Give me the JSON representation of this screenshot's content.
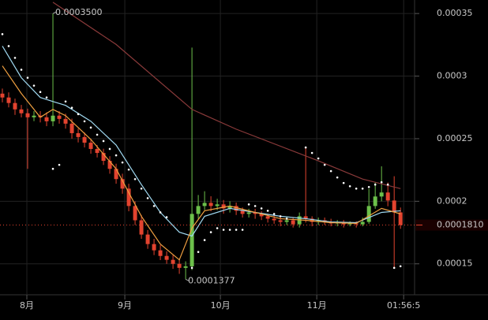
{
  "chart_data": {
    "type": "candlestick",
    "xlim": [
      0,
      65.6
    ],
    "ylim": [
      0.0001278,
      0.0003608
    ],
    "yticks": [
      0.00015,
      0.0002,
      0.00025,
      0.0003,
      0.00035
    ],
    "xticks": [
      {
        "value": 3.875,
        "label": "8月"
      },
      {
        "value": 19.375,
        "label": "9月"
      },
      {
        "value": 34.5,
        "label": "10月"
      },
      {
        "value": 49.75,
        "label": "11月"
      },
      {
        "value": 63.5,
        "label": "01:56:5"
      }
    ],
    "grid": true,
    "up_color": "#6cc04a",
    "down_color": "#e2432f",
    "candles": {
      "open": [
        0.000286,
        0.0002829,
        0.0002785,
        0.0002734,
        0.0002703,
        0.0002671,
        0.0002684,
        0.0002671,
        0.0002639,
        0.0002684,
        0.0002658,
        0.000262,
        0.0002544,
        0.0002513,
        0.0002468,
        0.0002418,
        0.0002386,
        0.0002323,
        0.0002259,
        0.0002177,
        0.0002101,
        0.0001962,
        0.0001848,
        0.0001734,
        0.0001658,
        0.0001608,
        0.0001563,
        0.0001532,
        0.00015,
        0.0001468,
        0.000148,
        0.0001899,
        0.0001962,
        0.0001987,
        0.0001962,
        0.0001975,
        0.0001943,
        0.0001962,
        0.0001924,
        0.0001899,
        0.0001911,
        0.0001899,
        0.000188,
        0.0001861,
        0.0001848,
        0.0001835,
        0.0001848,
        0.0001816,
        0.000188,
        0.0001861,
        0.0001835,
        0.0001848,
        0.0001835,
        0.0001823,
        0.0001829,
        0.0001816,
        0.0001823,
        0.0001816,
        0.0001835,
        0.0001962,
        0.0002038,
        0.000207,
        0.0002006,
        0.0001911
      ],
      "high": [
        0.00029,
        0.000287,
        0.000282,
        0.000277,
        0.000274,
        0.000272,
        0.000272,
        0.000271,
        0.00035,
        0.000272,
        0.00027,
        0.000266,
        0.000258,
        0.000255,
        0.00025,
        0.000245,
        0.000242,
        0.000236,
        0.00023,
        0.000222,
        0.000214,
        0.0002,
        0.000189,
        0.000177,
        0.00017,
        0.000165,
        0.00016,
        0.000157,
        0.000154,
        0.000152,
        0.0003228,
        0.000205,
        0.000208,
        0.000204,
        0.000202,
        0.000201,
        0.0002,
        0.000199,
        0.000195,
        0.000194,
        0.000194,
        0.000192,
        0.00019,
        0.000189,
        0.000188,
        0.000188,
        0.000187,
        0.000191,
        0.000243,
        0.000188,
        0.000187,
        0.000187,
        0.000186,
        0.000185,
        0.000185,
        0.000184,
        0.000184,
        0.000187,
        0.00021,
        0.000215,
        0.0002279,
        0.000215,
        0.00022,
        0.000195
      ],
      "low": [
        0.000279,
        0.000275,
        0.000269,
        0.000267,
        0.0002259,
        0.000264,
        0.000263,
        0.00026,
        0.00026,
        0.000262,
        0.000258,
        0.00025,
        0.000247,
        0.000243,
        0.000238,
        0.000235,
        0.000229,
        0.000222,
        0.000214,
        0.000206,
        0.000192,
        0.000181,
        0.00017,
        0.000162,
        0.000157,
        0.000153,
        0.00015,
        0.000146,
        0.000142,
        0.0001377,
        0.000145,
        0.000186,
        0.000193,
        0.000192,
        0.000193,
        0.00019,
        0.000191,
        0.000189,
        0.000187,
        0.000187,
        0.000186,
        0.000185,
        0.000183,
        0.000182,
        0.00018,
        0.000181,
        0.000179,
        0.000179,
        0.000183,
        0.00018,
        0.000181,
        0.000181,
        0.00018,
        0.00018,
        0.000179,
        0.00018,
        0.000179,
        0.00018,
        0.000182,
        0.000194,
        0.0002,
        0.000196,
        0.0001468,
        0.000178
      ],
      "close": [
        0.0002829,
        0.0002785,
        0.0002734,
        0.0002703,
        0.0002671,
        0.0002684,
        0.0002671,
        0.0002639,
        0.0002684,
        0.0002658,
        0.000262,
        0.0002544,
        0.0002513,
        0.0002468,
        0.0002418,
        0.0002386,
        0.0002323,
        0.0002259,
        0.0002177,
        0.0002101,
        0.0001962,
        0.0001848,
        0.0001734,
        0.0001658,
        0.0001608,
        0.0001563,
        0.0001532,
        0.00015,
        0.0001468,
        0.000148,
        0.0001899,
        0.0001962,
        0.0001987,
        0.0001962,
        0.0001975,
        0.0001943,
        0.0001962,
        0.0001924,
        0.0001899,
        0.0001911,
        0.0001899,
        0.000188,
        0.0001861,
        0.0001848,
        0.0001835,
        0.0001848,
        0.0001816,
        0.000188,
        0.0001861,
        0.0001835,
        0.0001848,
        0.0001835,
        0.0001823,
        0.0001829,
        0.0001816,
        0.0001823,
        0.0001816,
        0.0001835,
        0.0001962,
        0.0002038,
        0.000207,
        0.0002006,
        0.0001911,
        0.000181
      ]
    },
    "series": [
      {
        "type": "line",
        "color": "#8a3a3a",
        "x": [
          8,
          18,
          30,
          37,
          50,
          57,
          63
        ],
        "values": [
          0.000359,
          0.0003253,
          0.0002734,
          0.0002576,
          0.0002323,
          0.0002177,
          0.0002101
        ]
      },
      {
        "type": "line",
        "color": "#9fd8f0",
        "x": [
          0,
          3,
          6,
          8,
          10,
          14,
          18,
          22,
          25,
          28,
          30,
          32,
          36,
          40,
          44,
          48,
          52,
          56,
          60,
          63
        ],
        "values": [
          0.000324,
          0.0002987,
          0.0002829,
          0.0002797,
          0.0002766,
          0.0002639,
          0.0002449,
          0.0002133,
          0.0001911,
          0.0001753,
          0.0001722,
          0.000188,
          0.0001943,
          0.0001911,
          0.000188,
          0.0001861,
          0.0001835,
          0.0001829,
          0.0001911,
          0.0001924
        ]
      },
      {
        "type": "line",
        "color": "#f0a040",
        "x": [
          0,
          3,
          6,
          8,
          10,
          14,
          18,
          22,
          25,
          28,
          30,
          32,
          36,
          40,
          44,
          48,
          52,
          56,
          60,
          63
        ],
        "values": [
          0.0003082,
          0.0002861,
          0.0002671,
          0.0002734,
          0.0002684,
          0.0002494,
          0.0002259,
          0.000188,
          0.0001658,
          0.0001532,
          0.0001785,
          0.0001924,
          0.0001962,
          0.0001911,
          0.0001861,
          0.0001848,
          0.0001829,
          0.0001823,
          0.0001943,
          0.0001899
        ]
      },
      {
        "type": "scatter",
        "color": "#ffffff",
        "x": [
          0,
          1,
          2,
          3,
          4,
          5,
          6,
          7,
          8,
          9,
          10,
          11,
          12,
          13,
          14,
          15,
          16,
          17,
          18,
          19,
          20,
          21,
          22,
          23,
          24,
          25,
          26,
          30,
          31,
          32,
          33,
          34,
          35,
          36,
          37,
          38,
          39,
          40,
          41,
          42,
          43,
          44,
          45,
          48,
          49,
          50,
          51,
          52,
          53,
          54,
          55,
          56,
          57,
          58,
          59,
          60,
          61,
          62,
          63
        ],
        "values": [
          0.0003335,
          0.000324,
          0.0003146,
          0.0003051,
          0.0002987,
          0.0002924,
          0.0002873,
          0.0002829,
          0.0002259,
          0.0002291,
          0.0002797,
          0.0002747,
          0.0002696,
          0.0002639,
          0.0002589,
          0.0002532,
          0.0002481,
          0.0002418,
          0.0002367,
          0.000231,
          0.0002253,
          0.0002177,
          0.0002101,
          0.0002025,
          0.0001962,
          0.0001911,
          0.0001873,
          0.0001468,
          0.0001595,
          0.000169,
          0.0001753,
          0.0001785,
          0.0001772,
          0.0001772,
          0.0001772,
          0.0001772,
          0.0001975,
          0.0001962,
          0.0001943,
          0.0001924,
          0.0001899,
          0.000188,
          0.0001861,
          0.000243,
          0.0002386,
          0.0002342,
          0.0002291,
          0.0002241,
          0.000219,
          0.0002146,
          0.000212,
          0.0002101,
          0.0002101,
          0.0002114,
          0.0002133,
          0.0002152,
          0.0002133,
          0.0001468,
          0.0001481
        ]
      }
    ],
    "last_price": {
      "value": 0.000181,
      "label": "0.0001810"
    },
    "annotations": [
      {
        "x": 8,
        "value": 0.00035,
        "label": "0.0003500"
      },
      {
        "x": 29,
        "value": 0.0001377,
        "label": "0.0001377"
      }
    ]
  }
}
